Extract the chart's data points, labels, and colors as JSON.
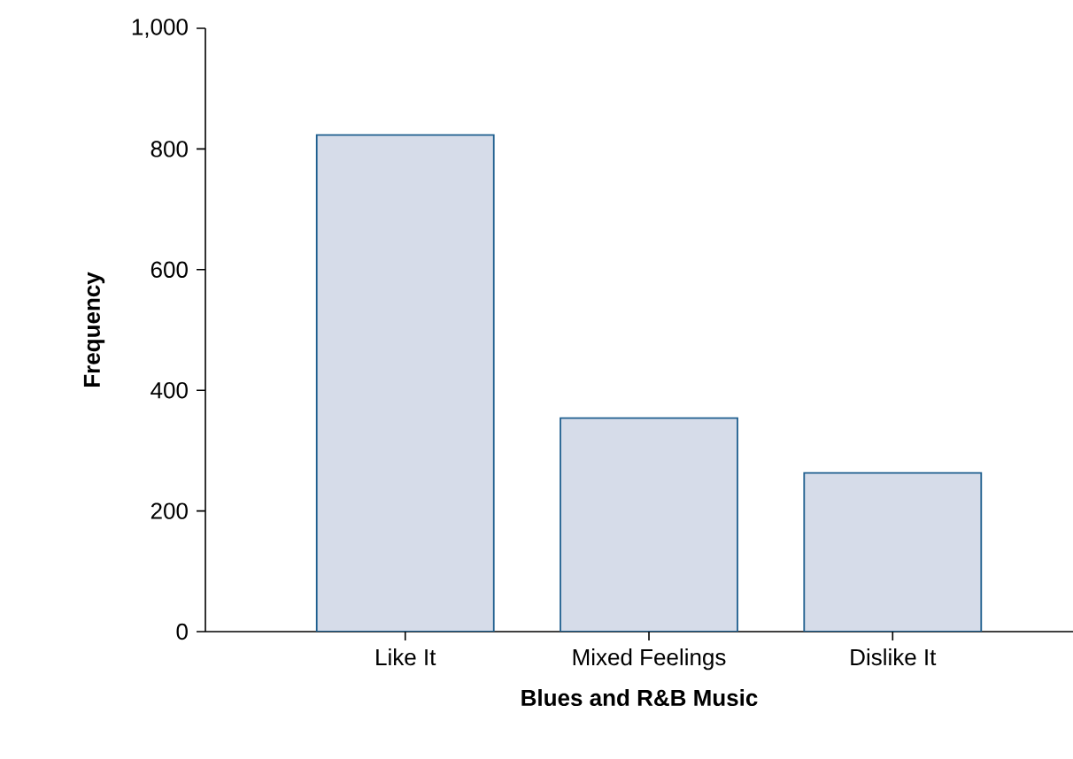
{
  "chart_data": {
    "type": "bar",
    "xlabel": "Blues and R&B Music",
    "ylabel": "Frequency",
    "categories": [
      "Like It",
      "Mixed Feelings",
      "Dislike It"
    ],
    "values": [
      823,
      354,
      263
    ],
    "color": "#d6dce9",
    "ylim": [
      0,
      1000
    ],
    "yticks": [
      0,
      200,
      400,
      600,
      {
        "value": 800,
        "label": "800"
      },
      {
        "value": 1000,
        "label": "1,000"
      }
    ],
    "grid": false
  }
}
